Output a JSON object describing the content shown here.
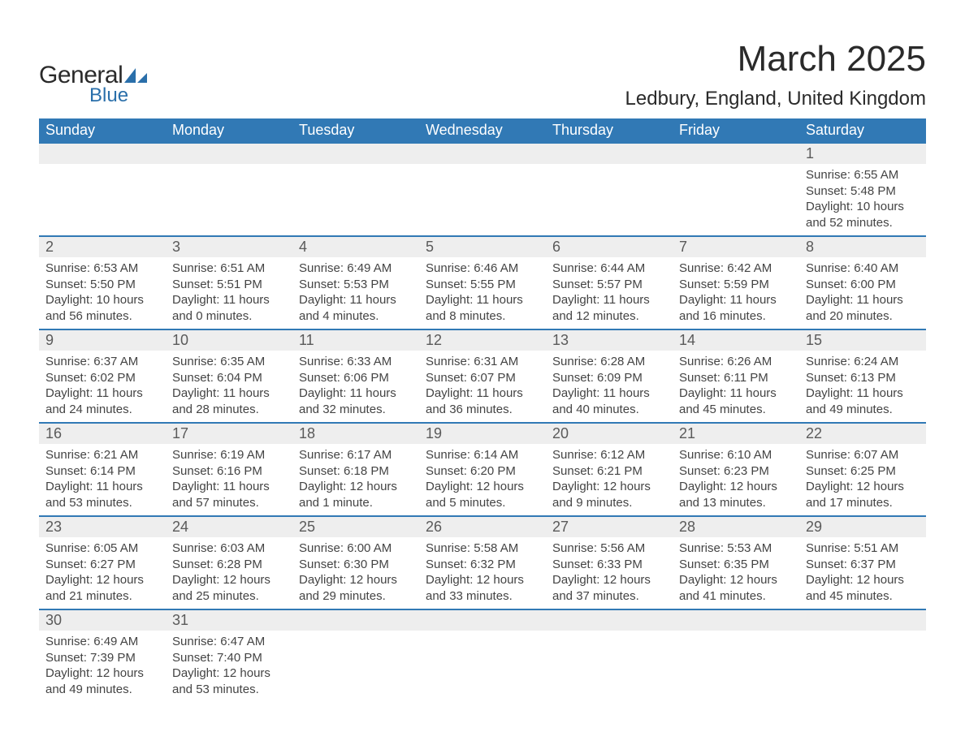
{
  "brand": {
    "part1": "General",
    "part2": "Blue",
    "shape_color": "#2a6faa"
  },
  "title": "March 2025",
  "location": "Ledbury, England, United Kingdom",
  "colors": {
    "header_bg": "#3179b5",
    "header_text": "#ffffff",
    "row_border": "#3179b5",
    "daynum_bg": "#eeeeee",
    "daynum_text": "#5a5a5a",
    "body_text": "#444444",
    "background": "#ffffff"
  },
  "typography": {
    "title_fontsize": 44,
    "location_fontsize": 24,
    "dow_fontsize": 18,
    "daynum_fontsize": 18,
    "data_fontsize": 15
  },
  "days_of_week": [
    "Sunday",
    "Monday",
    "Tuesday",
    "Wednesday",
    "Thursday",
    "Friday",
    "Saturday"
  ],
  "weeks": [
    [
      {
        "empty": true
      },
      {
        "empty": true
      },
      {
        "empty": true
      },
      {
        "empty": true
      },
      {
        "empty": true
      },
      {
        "empty": true
      },
      {
        "day": "1",
        "sunrise": "Sunrise: 6:55 AM",
        "sunset": "Sunset: 5:48 PM",
        "daylight1": "Daylight: 10 hours",
        "daylight2": "and 52 minutes."
      }
    ],
    [
      {
        "day": "2",
        "sunrise": "Sunrise: 6:53 AM",
        "sunset": "Sunset: 5:50 PM",
        "daylight1": "Daylight: 10 hours",
        "daylight2": "and 56 minutes."
      },
      {
        "day": "3",
        "sunrise": "Sunrise: 6:51 AM",
        "sunset": "Sunset: 5:51 PM",
        "daylight1": "Daylight: 11 hours",
        "daylight2": "and 0 minutes."
      },
      {
        "day": "4",
        "sunrise": "Sunrise: 6:49 AM",
        "sunset": "Sunset: 5:53 PM",
        "daylight1": "Daylight: 11 hours",
        "daylight2": "and 4 minutes."
      },
      {
        "day": "5",
        "sunrise": "Sunrise: 6:46 AM",
        "sunset": "Sunset: 5:55 PM",
        "daylight1": "Daylight: 11 hours",
        "daylight2": "and 8 minutes."
      },
      {
        "day": "6",
        "sunrise": "Sunrise: 6:44 AM",
        "sunset": "Sunset: 5:57 PM",
        "daylight1": "Daylight: 11 hours",
        "daylight2": "and 12 minutes."
      },
      {
        "day": "7",
        "sunrise": "Sunrise: 6:42 AM",
        "sunset": "Sunset: 5:59 PM",
        "daylight1": "Daylight: 11 hours",
        "daylight2": "and 16 minutes."
      },
      {
        "day": "8",
        "sunrise": "Sunrise: 6:40 AM",
        "sunset": "Sunset: 6:00 PM",
        "daylight1": "Daylight: 11 hours",
        "daylight2": "and 20 minutes."
      }
    ],
    [
      {
        "day": "9",
        "sunrise": "Sunrise: 6:37 AM",
        "sunset": "Sunset: 6:02 PM",
        "daylight1": "Daylight: 11 hours",
        "daylight2": "and 24 minutes."
      },
      {
        "day": "10",
        "sunrise": "Sunrise: 6:35 AM",
        "sunset": "Sunset: 6:04 PM",
        "daylight1": "Daylight: 11 hours",
        "daylight2": "and 28 minutes."
      },
      {
        "day": "11",
        "sunrise": "Sunrise: 6:33 AM",
        "sunset": "Sunset: 6:06 PM",
        "daylight1": "Daylight: 11 hours",
        "daylight2": "and 32 minutes."
      },
      {
        "day": "12",
        "sunrise": "Sunrise: 6:31 AM",
        "sunset": "Sunset: 6:07 PM",
        "daylight1": "Daylight: 11 hours",
        "daylight2": "and 36 minutes."
      },
      {
        "day": "13",
        "sunrise": "Sunrise: 6:28 AM",
        "sunset": "Sunset: 6:09 PM",
        "daylight1": "Daylight: 11 hours",
        "daylight2": "and 40 minutes."
      },
      {
        "day": "14",
        "sunrise": "Sunrise: 6:26 AM",
        "sunset": "Sunset: 6:11 PM",
        "daylight1": "Daylight: 11 hours",
        "daylight2": "and 45 minutes."
      },
      {
        "day": "15",
        "sunrise": "Sunrise: 6:24 AM",
        "sunset": "Sunset: 6:13 PM",
        "daylight1": "Daylight: 11 hours",
        "daylight2": "and 49 minutes."
      }
    ],
    [
      {
        "day": "16",
        "sunrise": "Sunrise: 6:21 AM",
        "sunset": "Sunset: 6:14 PM",
        "daylight1": "Daylight: 11 hours",
        "daylight2": "and 53 minutes."
      },
      {
        "day": "17",
        "sunrise": "Sunrise: 6:19 AM",
        "sunset": "Sunset: 6:16 PM",
        "daylight1": "Daylight: 11 hours",
        "daylight2": "and 57 minutes."
      },
      {
        "day": "18",
        "sunrise": "Sunrise: 6:17 AM",
        "sunset": "Sunset: 6:18 PM",
        "daylight1": "Daylight: 12 hours",
        "daylight2": "and 1 minute."
      },
      {
        "day": "19",
        "sunrise": "Sunrise: 6:14 AM",
        "sunset": "Sunset: 6:20 PM",
        "daylight1": "Daylight: 12 hours",
        "daylight2": "and 5 minutes."
      },
      {
        "day": "20",
        "sunrise": "Sunrise: 6:12 AM",
        "sunset": "Sunset: 6:21 PM",
        "daylight1": "Daylight: 12 hours",
        "daylight2": "and 9 minutes."
      },
      {
        "day": "21",
        "sunrise": "Sunrise: 6:10 AM",
        "sunset": "Sunset: 6:23 PM",
        "daylight1": "Daylight: 12 hours",
        "daylight2": "and 13 minutes."
      },
      {
        "day": "22",
        "sunrise": "Sunrise: 6:07 AM",
        "sunset": "Sunset: 6:25 PM",
        "daylight1": "Daylight: 12 hours",
        "daylight2": "and 17 minutes."
      }
    ],
    [
      {
        "day": "23",
        "sunrise": "Sunrise: 6:05 AM",
        "sunset": "Sunset: 6:27 PM",
        "daylight1": "Daylight: 12 hours",
        "daylight2": "and 21 minutes."
      },
      {
        "day": "24",
        "sunrise": "Sunrise: 6:03 AM",
        "sunset": "Sunset: 6:28 PM",
        "daylight1": "Daylight: 12 hours",
        "daylight2": "and 25 minutes."
      },
      {
        "day": "25",
        "sunrise": "Sunrise: 6:00 AM",
        "sunset": "Sunset: 6:30 PM",
        "daylight1": "Daylight: 12 hours",
        "daylight2": "and 29 minutes."
      },
      {
        "day": "26",
        "sunrise": "Sunrise: 5:58 AM",
        "sunset": "Sunset: 6:32 PM",
        "daylight1": "Daylight: 12 hours",
        "daylight2": "and 33 minutes."
      },
      {
        "day": "27",
        "sunrise": "Sunrise: 5:56 AM",
        "sunset": "Sunset: 6:33 PM",
        "daylight1": "Daylight: 12 hours",
        "daylight2": "and 37 minutes."
      },
      {
        "day": "28",
        "sunrise": "Sunrise: 5:53 AM",
        "sunset": "Sunset: 6:35 PM",
        "daylight1": "Daylight: 12 hours",
        "daylight2": "and 41 minutes."
      },
      {
        "day": "29",
        "sunrise": "Sunrise: 5:51 AM",
        "sunset": "Sunset: 6:37 PM",
        "daylight1": "Daylight: 12 hours",
        "daylight2": "and 45 minutes."
      }
    ],
    [
      {
        "day": "30",
        "sunrise": "Sunrise: 6:49 AM",
        "sunset": "Sunset: 7:39 PM",
        "daylight1": "Daylight: 12 hours",
        "daylight2": "and 49 minutes."
      },
      {
        "day": "31",
        "sunrise": "Sunrise: 6:47 AM",
        "sunset": "Sunset: 7:40 PM",
        "daylight1": "Daylight: 12 hours",
        "daylight2": "and 53 minutes."
      },
      {
        "empty": true
      },
      {
        "empty": true
      },
      {
        "empty": true
      },
      {
        "empty": true
      },
      {
        "empty": true
      }
    ]
  ]
}
